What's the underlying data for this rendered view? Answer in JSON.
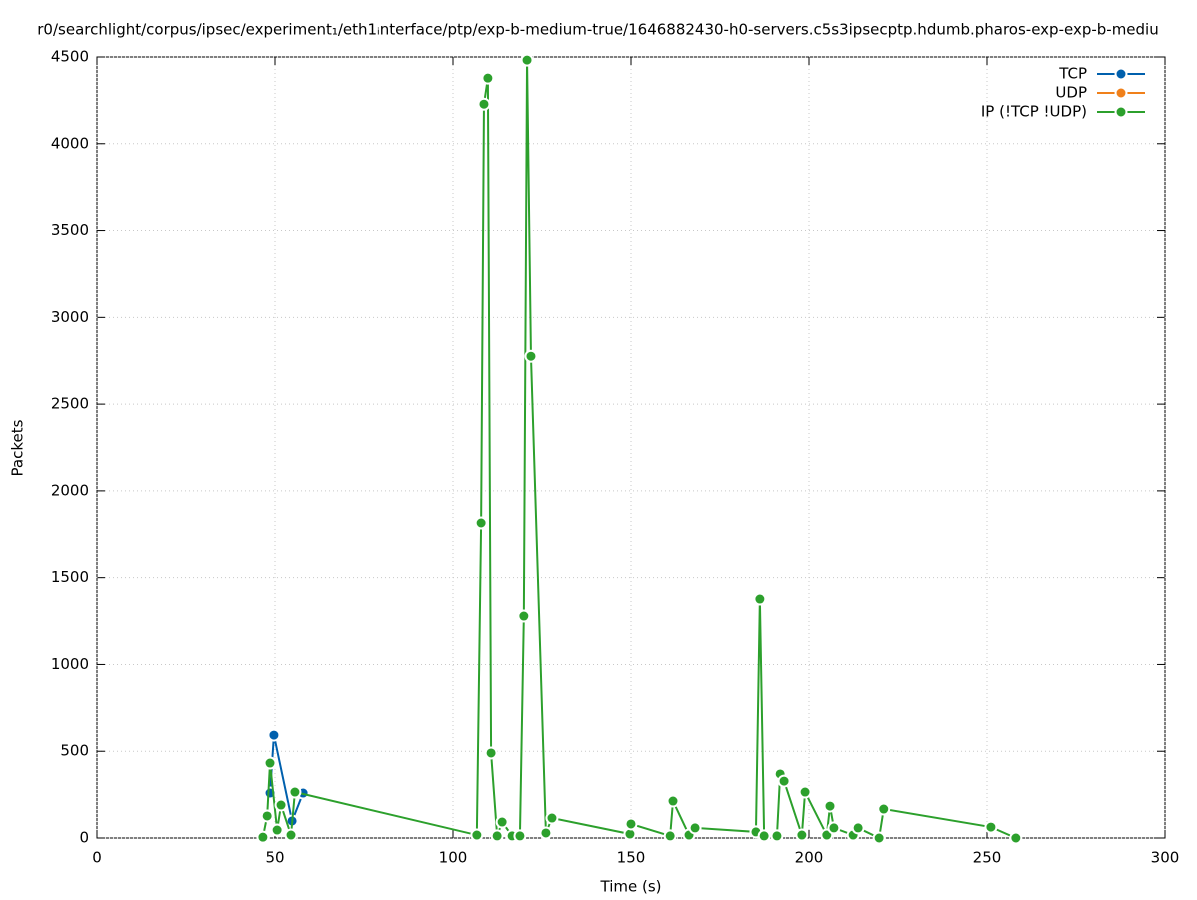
{
  "chart_data": {
    "type": "line",
    "title": "r0/searchlight/corpus/ipsec/experiment₁/eth1ᵢnterface/ptp/exp-b-medium-true/1646882430-h0-servers.c5s3ipsecptp.hdumb.pharos-exp-exp-b-mediu",
    "x_label": "Time (s)",
    "y_label": "Packets",
    "xlim": [
      0,
      300
    ],
    "xticks": [
      0,
      50,
      100,
      150,
      200,
      250,
      300
    ],
    "ylim": [
      0,
      4500
    ],
    "yticks": [
      0,
      500,
      1000,
      1500,
      2000,
      2500,
      3000,
      3500,
      4000,
      4500
    ],
    "grid": true,
    "legend": "top-right",
    "series": [
      {
        "name": "TCP",
        "color": "#0060ad",
        "x": [
          48.6,
          49.7,
          54.8,
          57.9
        ],
        "values": [
          259,
          593,
          98,
          259
        ]
      },
      {
        "name": "UDP",
        "color": "#f0801a",
        "x": [],
        "values": []
      },
      {
        "name": "IP (!TCP  !UDP)",
        "color": "#2ca02c",
        "x": [
          46.6,
          47.8,
          48.6,
          50.6,
          51.7,
          54.5,
          55.6,
          106.7,
          107.9,
          108.7,
          109.8,
          110.7,
          112.4,
          113.8,
          116.6,
          118.8,
          119.9,
          120.8,
          121.9,
          126.1,
          127.8,
          149.7,
          150,
          161,
          161.8,
          166.3,
          168,
          185.1,
          186.2,
          187.4,
          191,
          191.9,
          193,
          198,
          198.9,
          205,
          205.9,
          207,
          212.4,
          213.8,
          219.7,
          221,
          251.1,
          258.1
        ],
        "values": [
          5,
          127,
          432,
          46,
          190,
          17,
          265,
          17,
          1815,
          4228,
          4378,
          490,
          12,
          92,
          12,
          12,
          1279,
          4482,
          2776,
          29,
          115,
          23,
          81,
          12,
          213,
          17,
          58,
          35,
          1377,
          12,
          12,
          369,
          328,
          17,
          265,
          17,
          184,
          58,
          17,
          58,
          0,
          167,
          63,
          0
        ]
      }
    ]
  }
}
